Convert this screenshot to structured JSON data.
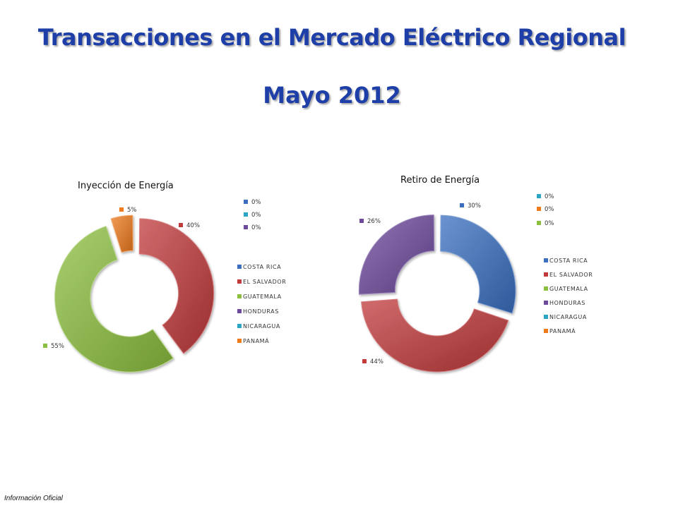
{
  "page": {
    "title": "Transacciones en el Mercado Eléctrico Regional",
    "subtitle": "Mayo 2012",
    "footer": "Información Oficial"
  },
  "colors": {
    "title": "#1f3fa8",
    "costa_rica": "#3a6fc0",
    "el_salvador": "#c0393b",
    "guatemala": "#8cbf3f",
    "honduras": "#6d4a9c",
    "nicaragua": "#2aa6c4",
    "panama": "#ee7a1e"
  },
  "chart_data": [
    {
      "type": "pie",
      "title": "Inyección de Energía",
      "categories": [
        "COSTA RICA",
        "EL SALVADOR",
        "GUATEMALA",
        "HONDURAS",
        "NICARAGUA",
        "PANAMA"
      ],
      "values": [
        0,
        40,
        55,
        0,
        0,
        5
      ],
      "slices": [
        {
          "name": "EL SALVADOR",
          "value": 40,
          "label": "40%",
          "color": "#c0393b"
        },
        {
          "name": "GUATEMALA",
          "value": 55,
          "label": "55%",
          "color": "#8cbf3f"
        },
        {
          "name": "PANAMA",
          "value": 5,
          "label": "5%",
          "color": "#ee7a1e"
        }
      ],
      "zero_labels": [
        {
          "label": "0%",
          "color": "#3a6fc0"
        },
        {
          "label": "0%",
          "color": "#2aa6c4"
        },
        {
          "label": "0%",
          "color": "#6d4a9c"
        }
      ],
      "legend": [
        {
          "name": "COSTA RICA",
          "color": "#3a6fc0"
        },
        {
          "name": "EL SALVADOR",
          "color": "#c0393b"
        },
        {
          "name": "GUATEMALA",
          "color": "#8cbf3f"
        },
        {
          "name": "HONDURAS",
          "color": "#6d4a9c"
        },
        {
          "name": "NICARAGUA",
          "color": "#2aa6c4"
        },
        {
          "name": "PANAMÁ",
          "color": "#ee7a1e"
        }
      ],
      "legend_position": "right"
    },
    {
      "type": "pie",
      "title": "Retiro de Energía",
      "categories": [
        "COSTA RICA",
        "EL SALVADOR",
        "GUATEMALA",
        "HONDURAS",
        "NICARAGUA",
        "PANAMA"
      ],
      "values": [
        30,
        44,
        0,
        26,
        0,
        0
      ],
      "slices": [
        {
          "name": "COSTA RICA",
          "value": 30,
          "label": "30%",
          "color": "#3a6fc0"
        },
        {
          "name": "EL SALVADOR",
          "value": 44,
          "label": "44%",
          "color": "#c0393b"
        },
        {
          "name": "HONDURAS",
          "value": 26,
          "label": "26%",
          "color": "#6d4a9c"
        }
      ],
      "zero_labels": [
        {
          "label": "0%",
          "color": "#2aa6c4"
        },
        {
          "label": "0%",
          "color": "#ee7a1e"
        },
        {
          "label": "0%",
          "color": "#8cbf3f"
        }
      ],
      "legend": [
        {
          "name": "COSTA RICA",
          "color": "#3a6fc0"
        },
        {
          "name": "EL SALVADOR",
          "color": "#c0393b"
        },
        {
          "name": "GUATEMALA",
          "color": "#8cbf3f"
        },
        {
          "name": "HONDURAS",
          "color": "#6d4a9c"
        },
        {
          "name": "NICARAGUA",
          "color": "#2aa6c4"
        },
        {
          "name": "PANAMÁ",
          "color": "#ee7a1e"
        }
      ],
      "legend_position": "right"
    }
  ]
}
